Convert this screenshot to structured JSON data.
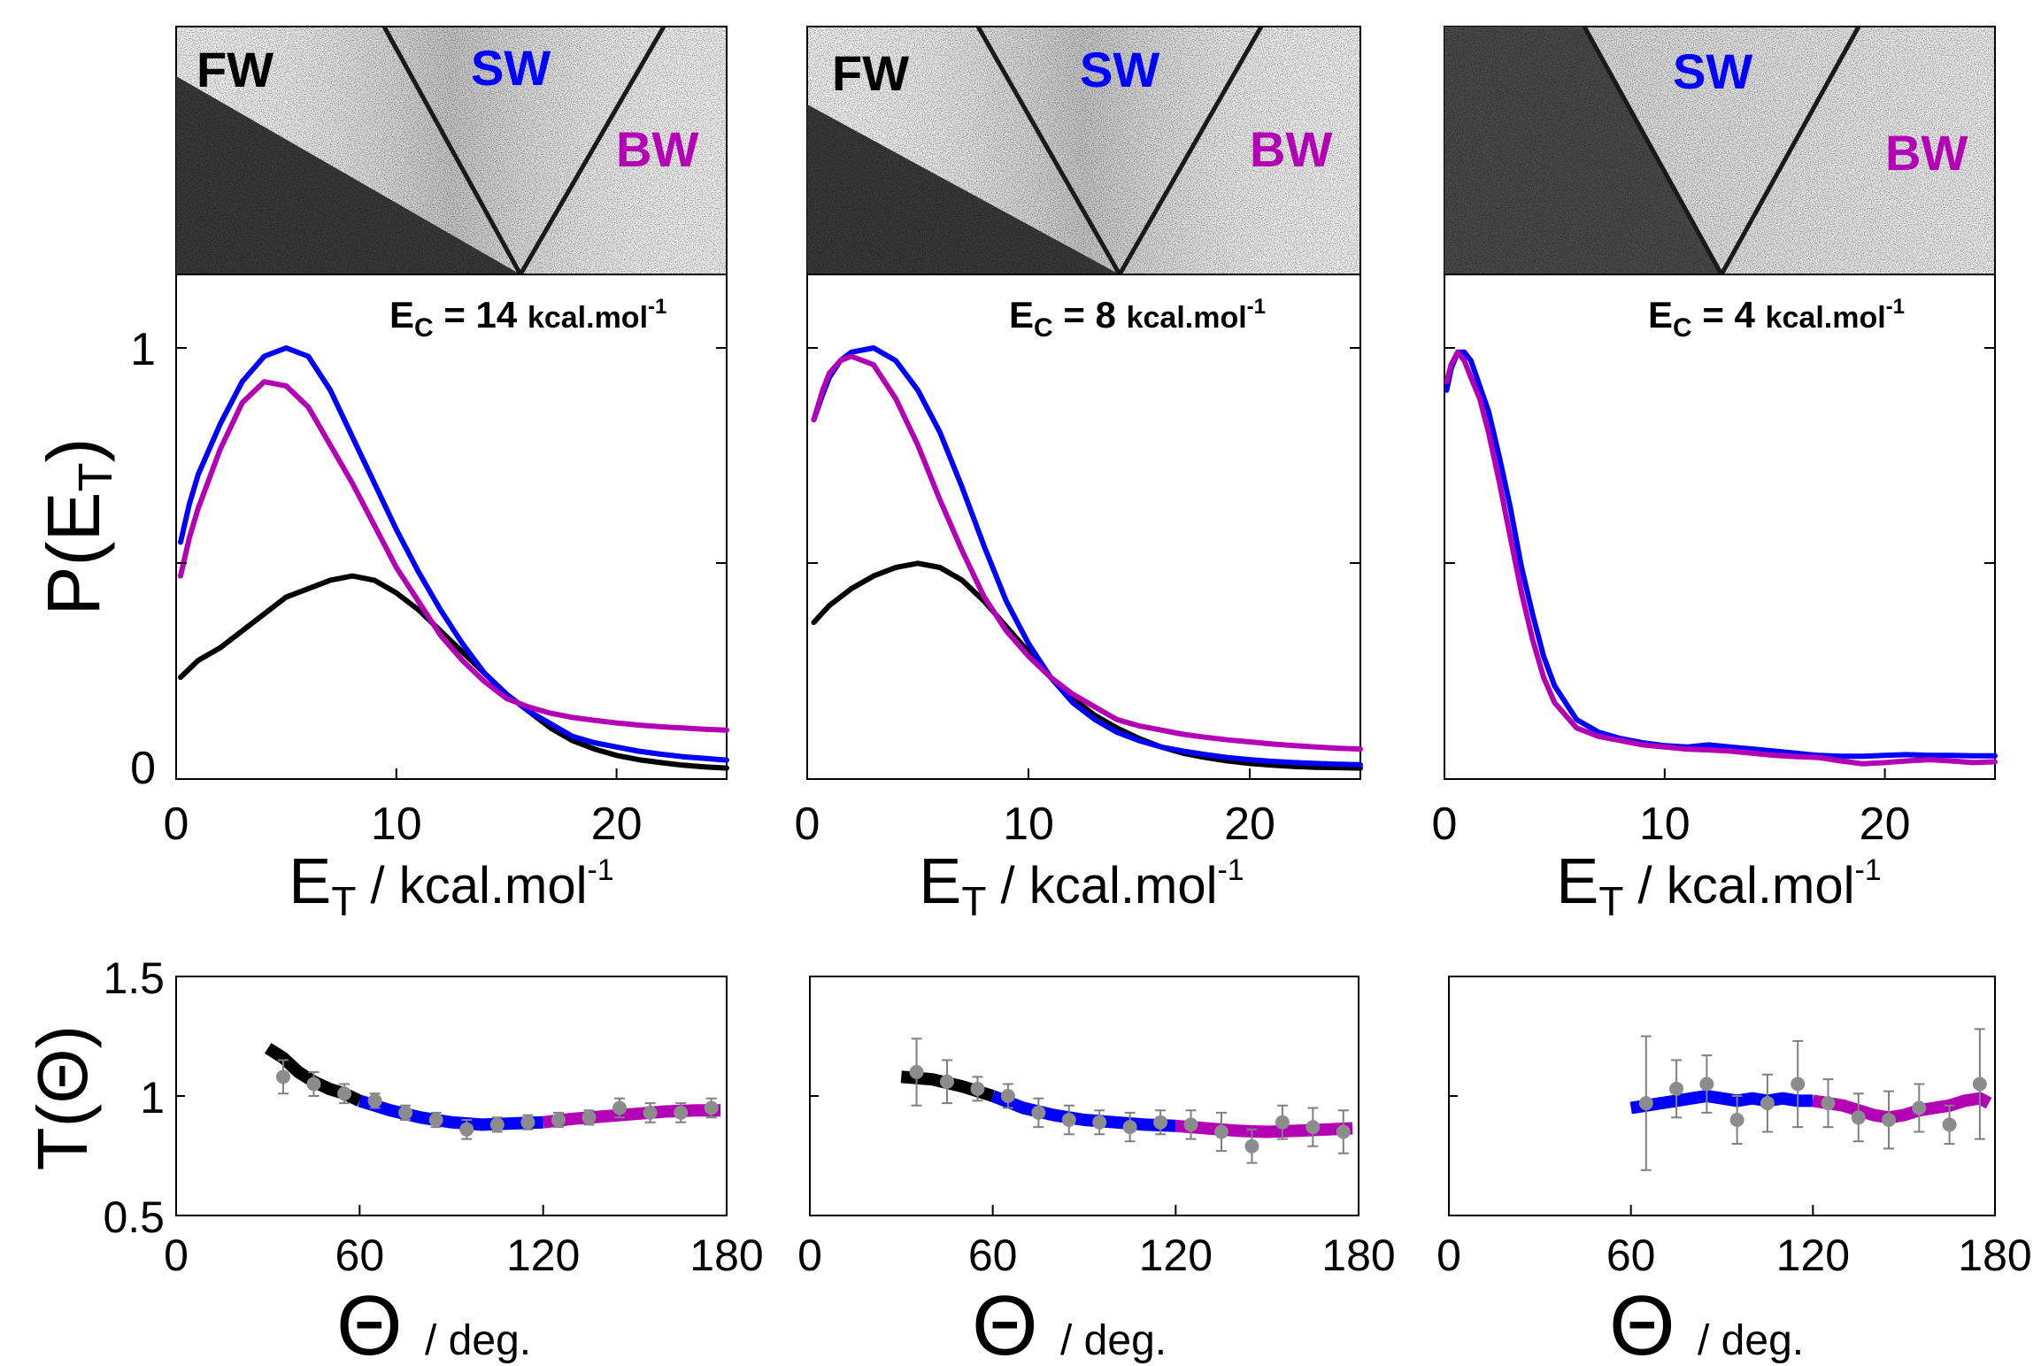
{
  "figure": {
    "pet_ylabel": "P(E",
    "pet_ylabel_sub": "T",
    "pet_ylabel_close": ")",
    "tth_ylabel": "T(Θ)",
    "pet_xlabel_main": "E",
    "pet_xlabel_sub": "T",
    "pet_xlabel_rest": " / kcal.mol",
    "pet_xlabel_sup": "-1",
    "tth_xlabel_theta": "Θ",
    "tth_xlabel_unit": "/ deg.",
    "ec_prefix": "E",
    "ec_sub": "C",
    "ec_unit": "kcal.mol",
    "ec_sup": "-1",
    "region_fw": "FW",
    "region_sw": "SW",
    "region_bw": "BW"
  },
  "colors": {
    "fw": "#000000",
    "sw": "#0000ff",
    "bw": "#b400b4",
    "points": "#8c8c8c"
  },
  "chart_data": [
    {
      "type": "line",
      "panel": "P(E_T) at Ec = 14",
      "ec_value": "14",
      "ec_text": " = 14 ",
      "xlim": [
        0,
        25
      ],
      "ylim": [
        0,
        1
      ],
      "xticks": [
        0,
        10,
        20
      ],
      "yticks": [
        0,
        1
      ],
      "series": [
        {
          "region": "FW",
          "x": [
            0.2,
            1,
            2,
            3,
            4,
            5,
            6,
            7,
            8,
            9,
            10,
            11,
            12,
            13,
            14,
            15,
            16,
            17,
            18,
            19,
            20,
            21,
            22,
            23,
            24,
            25
          ],
          "y": [
            0.22,
            0.26,
            0.29,
            0.33,
            0.37,
            0.41,
            0.43,
            0.45,
            0.46,
            0.45,
            0.42,
            0.38,
            0.33,
            0.28,
            0.23,
            0.18,
            0.14,
            0.1,
            0.07,
            0.05,
            0.035,
            0.025,
            0.018,
            0.012,
            0.008,
            0.005
          ]
        },
        {
          "region": "SW",
          "x": [
            0.2,
            0.6,
            1,
            2,
            3,
            4,
            5,
            6,
            7,
            8,
            9,
            10,
            11,
            12,
            13,
            14,
            15,
            16,
            17,
            18,
            19,
            20,
            21,
            22,
            23,
            24,
            25
          ],
          "y": [
            0.54,
            0.63,
            0.7,
            0.82,
            0.92,
            0.98,
            1.0,
            0.98,
            0.9,
            0.79,
            0.68,
            0.57,
            0.47,
            0.38,
            0.3,
            0.23,
            0.18,
            0.14,
            0.11,
            0.08,
            0.065,
            0.055,
            0.045,
            0.038,
            0.032,
            0.028,
            0.024
          ]
        },
        {
          "region": "BW",
          "x": [
            0.2,
            0.6,
            1,
            2,
            3,
            4,
            5,
            6,
            7,
            8,
            9,
            10,
            11,
            12,
            13,
            14,
            15,
            16,
            17,
            18,
            19,
            20,
            21,
            22,
            23,
            24,
            25
          ],
          "y": [
            0.46,
            0.55,
            0.62,
            0.76,
            0.87,
            0.92,
            0.91,
            0.86,
            0.77,
            0.68,
            0.58,
            0.48,
            0.4,
            0.32,
            0.26,
            0.21,
            0.17,
            0.15,
            0.135,
            0.125,
            0.118,
            0.112,
            0.107,
            0.103,
            0.1,
            0.097,
            0.095
          ]
        }
      ]
    },
    {
      "type": "line",
      "panel": "P(E_T) at Ec = 8",
      "ec_value": "8",
      "ec_text": " = 8 ",
      "xlim": [
        0,
        25
      ],
      "ylim": [
        0,
        1
      ],
      "xticks": [
        0,
        10,
        20
      ],
      "yticks": [
        0,
        1
      ],
      "series": [
        {
          "region": "FW",
          "x": [
            0.3,
            1,
            2,
            3,
            4,
            5,
            6,
            7,
            8,
            9,
            10,
            11,
            12,
            13,
            14,
            15,
            16,
            17,
            18,
            19,
            20,
            21,
            22,
            23,
            24,
            25
          ],
          "y": [
            0.35,
            0.39,
            0.43,
            0.46,
            0.48,
            0.49,
            0.48,
            0.45,
            0.4,
            0.34,
            0.28,
            0.22,
            0.17,
            0.13,
            0.1,
            0.075,
            0.055,
            0.04,
            0.03,
            0.022,
            0.016,
            0.012,
            0.009,
            0.007,
            0.006,
            0.005
          ]
        },
        {
          "region": "SW",
          "x": [
            0.3,
            0.7,
            1,
            1.5,
            2,
            3,
            4,
            5,
            6,
            7,
            8,
            9,
            10,
            11,
            12,
            13,
            14,
            15,
            16,
            17,
            18,
            19,
            20,
            21,
            22,
            23,
            24,
            25
          ],
          "y": [
            0.83,
            0.89,
            0.93,
            0.97,
            0.99,
            1.0,
            0.97,
            0.9,
            0.8,
            0.67,
            0.53,
            0.4,
            0.3,
            0.22,
            0.16,
            0.12,
            0.09,
            0.07,
            0.055,
            0.045,
            0.037,
            0.03,
            0.025,
            0.021,
            0.018,
            0.016,
            0.014,
            0.013
          ]
        },
        {
          "region": "BW",
          "x": [
            0.3,
            0.7,
            1,
            1.5,
            2,
            3,
            4,
            5,
            6,
            7,
            8,
            9,
            10,
            11,
            12,
            13,
            14,
            15,
            16,
            17,
            18,
            19,
            20,
            21,
            22,
            23,
            24,
            25
          ],
          "y": [
            0.83,
            0.9,
            0.94,
            0.97,
            0.98,
            0.96,
            0.88,
            0.77,
            0.64,
            0.52,
            0.41,
            0.33,
            0.27,
            0.22,
            0.18,
            0.15,
            0.12,
            0.105,
            0.095,
            0.085,
            0.078,
            0.072,
            0.067,
            0.062,
            0.058,
            0.055,
            0.052,
            0.05
          ]
        }
      ]
    },
    {
      "type": "line",
      "panel": "P(E_T) at Ec = 4",
      "ec_value": "4",
      "ec_text": " = 4 ",
      "xlim": [
        0,
        25
      ],
      "ylim": [
        0,
        1
      ],
      "xticks": [
        0,
        10,
        20
      ],
      "yticks": [
        0,
        1
      ],
      "series": [
        {
          "region": "SW",
          "x": [
            0.1,
            0.3,
            0.6,
            0.9,
            1.2,
            1.6,
            2,
            2.5,
            3,
            3.5,
            4,
            4.5,
            5,
            6,
            7,
            8,
            9,
            10,
            11,
            12,
            13,
            14,
            15,
            16,
            17,
            18,
            19,
            20,
            21,
            22,
            23,
            24,
            25
          ],
          "y": [
            0.9,
            0.95,
            0.99,
            0.99,
            0.97,
            0.91,
            0.85,
            0.74,
            0.62,
            0.48,
            0.37,
            0.27,
            0.2,
            0.12,
            0.09,
            0.075,
            0.065,
            0.058,
            0.055,
            0.06,
            0.055,
            0.05,
            0.045,
            0.04,
            0.035,
            0.033,
            0.033,
            0.035,
            0.037,
            0.035,
            0.035,
            0.034,
            0.034
          ]
        },
        {
          "region": "BW",
          "x": [
            0.1,
            0.3,
            0.6,
            0.9,
            1.2,
            1.6,
            2,
            2.5,
            3,
            3.5,
            4,
            4.5,
            5,
            6,
            7,
            8,
            9,
            10,
            11,
            12,
            13,
            14,
            15,
            16,
            17,
            18,
            19,
            20,
            21,
            22,
            23,
            24,
            25
          ],
          "y": [
            0.92,
            0.96,
            0.99,
            0.97,
            0.93,
            0.88,
            0.8,
            0.68,
            0.55,
            0.42,
            0.31,
            0.22,
            0.16,
            0.1,
            0.08,
            0.07,
            0.06,
            0.055,
            0.05,
            0.048,
            0.045,
            0.04,
            0.035,
            0.032,
            0.03,
            0.022,
            0.015,
            0.018,
            0.022,
            0.025,
            0.022,
            0.018,
            0.02
          ]
        }
      ]
    },
    {
      "type": "scatter",
      "panel": "T(Θ) at Ec = 14",
      "xlim": [
        0,
        180
      ],
      "ylim": [
        0.5,
        1.5
      ],
      "xticks": [
        0,
        60,
        120,
        180
      ],
      "yticks": [
        0.5,
        1,
        1.5
      ],
      "yticklabels": [
        "0.5",
        "1",
        "1.5"
      ],
      "lines": [
        {
          "region": "FW",
          "x": [
            30,
            35,
            40,
            45,
            50,
            55,
            60
          ],
          "y": [
            1.2,
            1.16,
            1.1,
            1.06,
            1.03,
            1.01,
            0.98
          ]
        },
        {
          "region": "SW",
          "x": [
            60,
            70,
            80,
            90,
            100,
            110,
            120
          ],
          "y": [
            0.98,
            0.94,
            0.91,
            0.89,
            0.88,
            0.885,
            0.89
          ]
        },
        {
          "region": "BW",
          "x": [
            120,
            130,
            140,
            150,
            160,
            170,
            178
          ],
          "y": [
            0.89,
            0.905,
            0.915,
            0.925,
            0.935,
            0.94,
            0.94
          ]
        }
      ],
      "points": {
        "x": [
          35,
          45,
          55,
          65,
          75,
          85,
          95,
          105,
          115,
          125,
          135,
          145,
          155,
          165,
          175
        ],
        "y": [
          1.08,
          1.05,
          1.01,
          0.98,
          0.93,
          0.9,
          0.86,
          0.88,
          0.89,
          0.9,
          0.91,
          0.95,
          0.93,
          0.93,
          0.95
        ],
        "err": [
          0.07,
          0.05,
          0.04,
          0.03,
          0.03,
          0.03,
          0.04,
          0.03,
          0.03,
          0.03,
          0.03,
          0.04,
          0.04,
          0.04,
          0.04
        ]
      }
    },
    {
      "type": "scatter",
      "panel": "T(Θ) at Ec = 8",
      "xlim": [
        0,
        180
      ],
      "ylim": [
        0.5,
        1.5
      ],
      "xticks": [
        0,
        60,
        120,
        180
      ],
      "lines": [
        {
          "region": "FW",
          "x": [
            30,
            40,
            50,
            60
          ],
          "y": [
            1.08,
            1.07,
            1.04,
            1.0
          ]
        },
        {
          "region": "SW",
          "x": [
            60,
            70,
            80,
            90,
            100,
            110,
            120
          ],
          "y": [
            1.0,
            0.95,
            0.92,
            0.9,
            0.89,
            0.88,
            0.875
          ]
        },
        {
          "region": "BW",
          "x": [
            120,
            130,
            140,
            150,
            160,
            170,
            178
          ],
          "y": [
            0.875,
            0.865,
            0.855,
            0.85,
            0.855,
            0.86,
            0.865
          ]
        }
      ],
      "points": {
        "x": [
          35,
          45,
          55,
          65,
          75,
          85,
          95,
          105,
          115,
          125,
          135,
          145,
          155,
          165,
          175
        ],
        "y": [
          1.1,
          1.06,
          1.03,
          1.0,
          0.93,
          0.9,
          0.89,
          0.87,
          0.89,
          0.88,
          0.85,
          0.79,
          0.89,
          0.87,
          0.85
        ],
        "err": [
          0.14,
          0.09,
          0.05,
          0.05,
          0.06,
          0.06,
          0.05,
          0.06,
          0.05,
          0.06,
          0.08,
          0.07,
          0.07,
          0.08,
          0.09
        ]
      }
    },
    {
      "type": "scatter",
      "panel": "T(Θ) at Ec = 4",
      "xlim": [
        0,
        180
      ],
      "ylim": [
        0.5,
        1.5
      ],
      "xticks": [
        0,
        60,
        120,
        180
      ],
      "lines": [
        {
          "region": "SW",
          "x": [
            60,
            65,
            70,
            75,
            80,
            85,
            90,
            95,
            100,
            105,
            110,
            115,
            120
          ],
          "y": [
            0.95,
            0.96,
            0.97,
            0.98,
            0.99,
            1.0,
            0.99,
            0.98,
            0.99,
            0.98,
            0.99,
            0.98,
            0.98
          ]
        },
        {
          "region": "BW",
          "x": [
            120,
            125,
            130,
            135,
            140,
            145,
            150,
            155,
            160,
            165,
            170,
            175,
            178
          ],
          "y": [
            0.98,
            0.97,
            0.96,
            0.94,
            0.92,
            0.91,
            0.92,
            0.94,
            0.95,
            0.96,
            0.98,
            0.99,
            0.97
          ]
        }
      ],
      "points": {
        "x": [
          65,
          75,
          85,
          95,
          105,
          115,
          125,
          135,
          145,
          155,
          165,
          175
        ],
        "y": [
          0.97,
          1.03,
          1.05,
          0.9,
          0.97,
          1.05,
          0.97,
          0.91,
          0.9,
          0.95,
          0.88,
          1.05
        ],
        "err": [
          0.28,
          0.12,
          0.12,
          0.1,
          0.12,
          0.18,
          0.1,
          0.1,
          0.12,
          0.1,
          0.08,
          0.23
        ]
      }
    }
  ],
  "images": [
    {
      "panel": "velocity map at Ec = 14",
      "regions": [
        "FW",
        "SW",
        "BW"
      ]
    },
    {
      "panel": "velocity map at Ec = 8",
      "regions": [
        "FW",
        "SW",
        "BW"
      ]
    },
    {
      "panel": "velocity map at Ec = 4",
      "regions": [
        "SW",
        "BW"
      ]
    }
  ]
}
